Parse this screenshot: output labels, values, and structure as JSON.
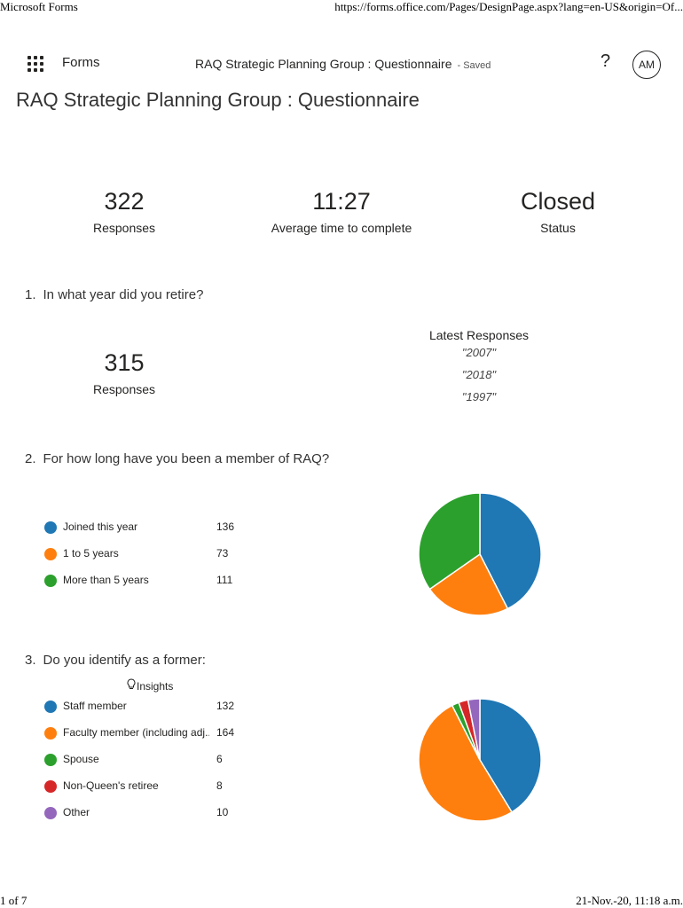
{
  "print_header": {
    "left": "Microsoft Forms",
    "right": "https://forms.office.com/Pages/DesignPage.aspx?lang=en-US&origin=Of..."
  },
  "app": {
    "name": "Forms",
    "doc_title": "RAQ Strategic Planning Group : Questionnaire",
    "saved": "- Saved",
    "help": "?",
    "avatar": "AM"
  },
  "page_title": "RAQ Strategic Planning Group : Questionnaire",
  "summary": [
    {
      "value": "322",
      "label": "Responses"
    },
    {
      "value": "11:27",
      "label": "Average time to complete"
    },
    {
      "value": "Closed",
      "label": "Status"
    }
  ],
  "q1": {
    "number": "1.",
    "text": "In what year did you retire?",
    "responses": "315",
    "responses_label": "Responses",
    "latest_header": "Latest Responses",
    "latest": [
      "\"2007\"",
      "\"2018\"",
      "\"1997\""
    ]
  },
  "q2": {
    "number": "2.",
    "text": "For how long have you been a member of RAQ?",
    "options": [
      {
        "label": "Joined this year",
        "count": "136",
        "value": 136,
        "color": "#1f77b4"
      },
      {
        "label": "1 to 5 years",
        "count": "73",
        "value": 73,
        "color": "#ff7f0e"
      },
      {
        "label": "More than 5 years",
        "count": "111",
        "value": 111,
        "color": "#2ca02c"
      }
    ]
  },
  "q3": {
    "number": "3.",
    "text": "Do you identify as a former:",
    "insights": "Insights",
    "insights_icon": "lightbulb-icon",
    "options": [
      {
        "label": "Staff member",
        "count": "132",
        "value": 132,
        "color": "#1f77b4"
      },
      {
        "label": "Faculty member (including adj...",
        "count": "164",
        "value": 164,
        "color": "#ff7f0e"
      },
      {
        "label": "Spouse",
        "count": "6",
        "value": 6,
        "color": "#2ca02c"
      },
      {
        "label": "Non-Queen's retiree",
        "count": "8",
        "value": 8,
        "color": "#d62728"
      },
      {
        "label": "Other",
        "count": "10",
        "value": 10,
        "color": "#9467bd"
      }
    ]
  },
  "print_footer": {
    "left": "1 of 7",
    "right": "21-Nov.-20, 11:18 a.m."
  }
}
